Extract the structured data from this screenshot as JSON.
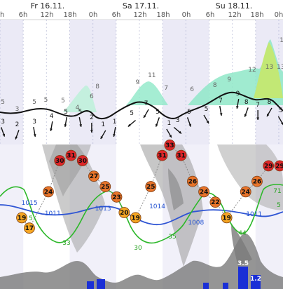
{
  "days": [
    "Fr 16.11.",
    "Sa 17.11.",
    "Su 18.11."
  ],
  "hour_labels": [
    "0h",
    "6h",
    "12h",
    "18h",
    "0h",
    "6h",
    "12h",
    "18h",
    "0h",
    "6h",
    "12h",
    "18h",
    "0h"
  ],
  "colors": {
    "temp_cold": "#f5a623",
    "temp_warm": "#e8742a",
    "temp_hot": "#e0262a",
    "pressure": "#2f55d4",
    "green": "#2db82a",
    "wind_fill": "#8fe8c8",
    "gust_fill": "#c6e86a",
    "precip": "#1a2fd6",
    "night_band": "#ebeaf6"
  },
  "chart_data": [
    {
      "type": "line",
      "name": "wind",
      "x_hours": [
        0,
        6,
        12,
        18,
        24,
        30,
        36,
        42,
        48,
        54,
        60,
        66,
        72,
        78,
        84,
        90,
        96
      ],
      "wind_labels": [
        {
          "h": 1,
          "v": "3"
        },
        {
          "h": 6,
          "v": "2"
        },
        {
          "h": 12,
          "v": "3"
        },
        {
          "h": 18,
          "v": "4"
        },
        {
          "h": 23,
          "v": "5"
        },
        {
          "h": 28,
          "v": "5"
        },
        {
          "h": 32,
          "v": "2"
        },
        {
          "h": 36,
          "v": "1"
        },
        {
          "h": 40,
          "v": "1"
        },
        {
          "h": 46,
          "v": "5"
        },
        {
          "h": 51,
          "v": "7"
        },
        {
          "h": 55,
          "v": "5"
        },
        {
          "h": 59,
          "v": "1"
        },
        {
          "h": 62,
          "v": "3"
        },
        {
          "h": 66,
          "v": "5"
        },
        {
          "h": 72,
          "v": "5"
        },
        {
          "h": 77,
          "v": "7"
        },
        {
          "h": 83,
          "v": "9"
        },
        {
          "h": 86,
          "v": "8"
        },
        {
          "h": 90,
          "v": "7"
        },
        {
          "h": 94,
          "v": "8"
        },
        {
          "h": 98,
          "v": "5"
        }
      ],
      "gust_labels": [
        {
          "h": 1,
          "v": "5"
        },
        {
          "h": 6,
          "v": "3"
        },
        {
          "h": 12,
          "v": "5"
        },
        {
          "h": 16,
          "v": "5"
        },
        {
          "h": 22,
          "v": "5"
        },
        {
          "h": 27,
          "v": "4"
        },
        {
          "h": 32,
          "v": "6"
        },
        {
          "h": 34,
          "v": "8"
        },
        {
          "h": 48,
          "v": "9"
        },
        {
          "h": 53,
          "v": "11"
        },
        {
          "h": 58,
          "v": "7"
        },
        {
          "h": 67,
          "v": "6"
        },
        {
          "h": 75,
          "v": "8"
        },
        {
          "h": 80,
          "v": "9"
        },
        {
          "h": 88,
          "v": "12"
        },
        {
          "h": 94,
          "v": "13"
        },
        {
          "h": 98,
          "v": "13"
        },
        {
          "h": 99,
          "v": "19"
        }
      ]
    },
    {
      "type": "line",
      "name": "temperature",
      "points": [
        {
          "h": 5,
          "v": 19
        },
        {
          "h": 7,
          "v": 17
        },
        {
          "h": 12,
          "v": 24
        },
        {
          "h": 15,
          "v": 30
        },
        {
          "h": 18,
          "v": 31
        },
        {
          "h": 21,
          "v": 30
        },
        {
          "h": 24,
          "v": 27
        },
        {
          "h": 27,
          "v": 25
        },
        {
          "h": 30,
          "v": 23
        },
        {
          "h": 32,
          "v": 20
        },
        {
          "h": 35,
          "v": 19
        },
        {
          "h": 39,
          "v": 25
        },
        {
          "h": 42,
          "v": 31
        },
        {
          "h": 44,
          "v": 33
        },
        {
          "h": 47,
          "v": 31
        },
        {
          "h": 50,
          "v": 26
        },
        {
          "h": 53,
          "v": 24
        },
        {
          "h": 56,
          "v": 22
        },
        {
          "h": 59,
          "v": 19
        },
        {
          "h": 64,
          "v": 24
        },
        {
          "h": 67,
          "v": 26
        },
        {
          "h": 70,
          "v": 29
        },
        {
          "h": 73,
          "v": 29
        },
        {
          "h": 76,
          "v": 27
        },
        {
          "h": 79,
          "v": 23
        },
        {
          "h": 82,
          "v": 21
        }
      ]
    },
    {
      "type": "line",
      "name": "pressure",
      "labels": [
        {
          "h": 4,
          "v": "1015"
        },
        {
          "h": 10,
          "v": "1011"
        },
        {
          "h": 23,
          "v": "1013"
        },
        {
          "h": 37,
          "v": "1014"
        },
        {
          "h": 47,
          "v": "1008"
        },
        {
          "h": 62,
          "v": "1011"
        },
        {
          "h": 75,
          "v": "1013"
        },
        {
          "h": 87,
          "v": "1011"
        }
      ]
    },
    {
      "type": "line",
      "name": "green",
      "labels": [
        {
          "h": 4,
          "v": "5"
        },
        {
          "h": 13,
          "v": "33"
        },
        {
          "h": 38,
          "v": "30"
        },
        {
          "h": 54,
          "v": "35"
        },
        {
          "h": 77,
          "v": "44"
        },
        {
          "h": 82,
          "v": "71"
        },
        {
          "h": 82.5,
          "v": "5"
        }
      ]
    },
    {
      "type": "bar",
      "name": "precipitation",
      "labels": [
        {
          "h": 75,
          "v": "3.5"
        },
        {
          "h": 79,
          "v": "1.2"
        }
      ]
    }
  ]
}
